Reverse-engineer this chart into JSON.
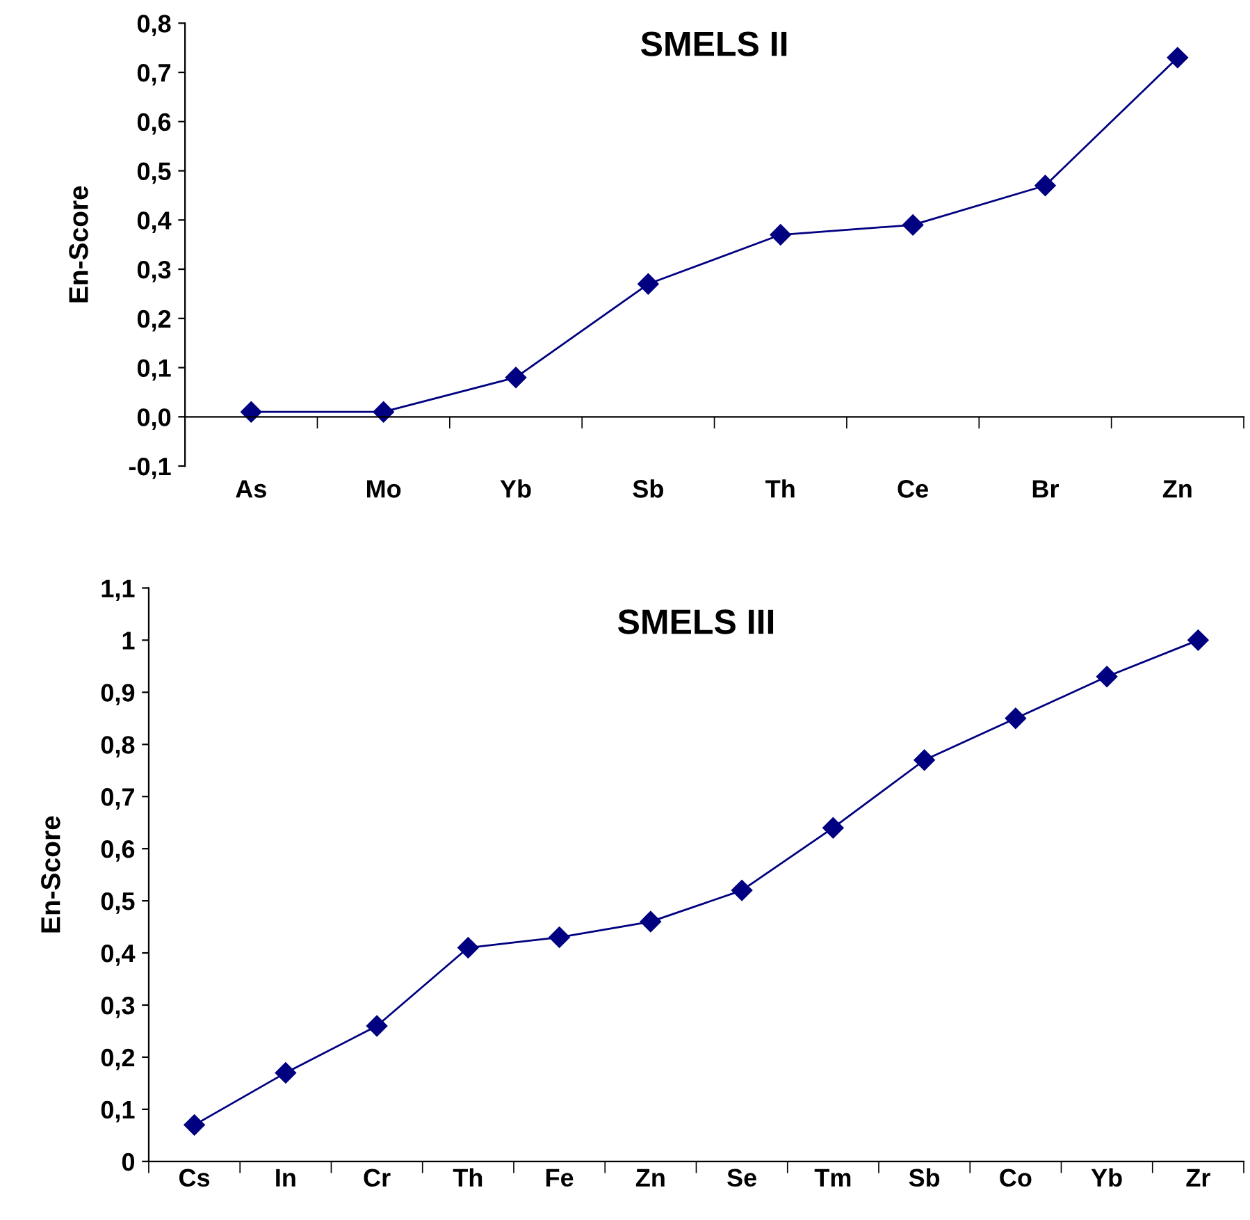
{
  "chart_data": [
    {
      "type": "line",
      "title": "SMELS II",
      "ylabel": "En-Score",
      "categories": [
        "As",
        "Mo",
        "Yb",
        "Sb",
        "Th",
        "Ce",
        "Br",
        "Zn"
      ],
      "values": [
        0.01,
        0.01,
        0.08,
        0.27,
        0.37,
        0.39,
        0.47,
        0.73
      ],
      "color": "#000080",
      "marker": "diamond",
      "line_style": "solid",
      "grid": false,
      "legend": false,
      "ylim": [
        -0.1,
        0.8
      ],
      "yticks": [
        {
          "value": -0.1,
          "label": "-0,1"
        },
        {
          "value": 0,
          "label": "0,0"
        },
        {
          "value": 0.1,
          "label": "0,1"
        },
        {
          "value": 0.2,
          "label": "0,2"
        },
        {
          "value": 0.3,
          "label": "0,3"
        },
        {
          "value": 0.4,
          "label": "0,4"
        },
        {
          "value": 0.5,
          "label": "0,5"
        },
        {
          "value": 0.6,
          "label": "0,6"
        },
        {
          "value": 0.7,
          "label": "0,7"
        },
        {
          "value": 0.8,
          "label": "0,8"
        }
      ]
    },
    {
      "type": "line",
      "title": "SMELS III",
      "ylabel": "En-Score",
      "categories": [
        "Cs",
        "In",
        "Cr",
        "Th",
        "Fe",
        "Zn",
        "Se",
        "Tm",
        "Sb",
        "Co",
        "Yb",
        "Zr"
      ],
      "values": [
        0.07,
        0.17,
        0.26,
        0.41,
        0.43,
        0.46,
        0.52,
        0.64,
        0.77,
        0.85,
        0.93,
        1.0
      ],
      "color": "#000080",
      "marker": "diamond",
      "line_style": "solid",
      "grid": false,
      "legend": false,
      "ylim": [
        0,
        1.1
      ],
      "yticks": [
        0,
        {
          "value": 0.1,
          "label": "0,1"
        },
        {
          "value": 0.2,
          "label": "0,2"
        },
        {
          "value": 0.3,
          "label": "0,3"
        },
        {
          "value": 0.4,
          "label": "0,4"
        },
        {
          "value": 0.5,
          "label": "0,5"
        },
        {
          "value": 0.6,
          "label": "0,6"
        },
        {
          "value": 0.7,
          "label": "0,7"
        },
        {
          "value": 0.8,
          "label": "0,8"
        },
        {
          "value": 0.9,
          "label": "0,9"
        },
        1,
        {
          "value": 1.1,
          "label": "1,1"
        }
      ]
    }
  ]
}
